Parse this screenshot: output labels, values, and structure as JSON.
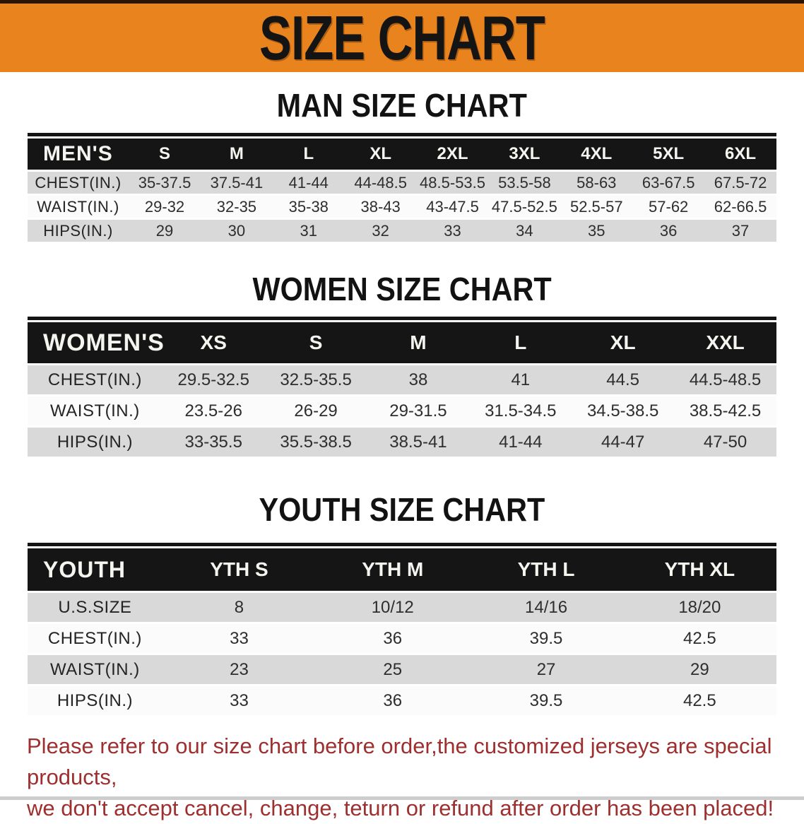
{
  "banner": {
    "title": "SIZE CHART"
  },
  "sections": [
    {
      "heading": "MAN SIZE CHART",
      "header_label": "MEN'S",
      "columns": [
        "S",
        "M",
        "L",
        "XL",
        "2XL",
        "3XL",
        "4XL",
        "5XL",
        "6XL"
      ],
      "rows": [
        {
          "label": "CHEST(IN.)",
          "values": [
            "35-37.5",
            "37.5-41",
            "41-44",
            "44-48.5",
            "48.5-53.5",
            "53.5-58",
            "58-63",
            "63-67.5",
            "67.5-72"
          ]
        },
        {
          "label": "WAIST(IN.)",
          "values": [
            "29-32",
            "32-35",
            "35-38",
            "38-43",
            "43-47.5",
            "47.5-52.5",
            "52.5-57",
            "57-62",
            "62-66.5"
          ]
        },
        {
          "label": "HIPS(IN.)",
          "values": [
            "29",
            "30",
            "31",
            "32",
            "33",
            "34",
            "35",
            "36",
            "37"
          ]
        }
      ]
    },
    {
      "heading": "WOMEN SIZE CHART",
      "header_label": "WOMEN'S",
      "columns": [
        "XS",
        "S",
        "M",
        "L",
        "XL",
        "XXL"
      ],
      "rows": [
        {
          "label": "CHEST(IN.)",
          "values": [
            "29.5-32.5",
            "32.5-35.5",
            "38",
            "41",
            "44.5",
            "44.5-48.5"
          ]
        },
        {
          "label": "WAIST(IN.)",
          "values": [
            "23.5-26",
            "26-29",
            "29-31.5",
            "31.5-34.5",
            "34.5-38.5",
            "38.5-42.5"
          ]
        },
        {
          "label": "HIPS(IN.)",
          "values": [
            "33-35.5",
            "35.5-38.5",
            "38.5-41",
            "41-44",
            "44-47",
            "47-50"
          ]
        }
      ]
    },
    {
      "heading": "YOUTH SIZE CHART",
      "header_label": "YOUTH",
      "columns": [
        "YTH S",
        "YTH M",
        "YTH L",
        "YTH XL"
      ],
      "rows": [
        {
          "label": "U.S.SIZE",
          "values": [
            "8",
            "10/12",
            "14/16",
            "18/20"
          ]
        },
        {
          "label": "CHEST(IN.)",
          "values": [
            "33",
            "36",
            "39.5",
            "42.5"
          ]
        },
        {
          "label": "WAIST(IN.)",
          "values": [
            "23",
            "25",
            "27",
            "29"
          ]
        },
        {
          "label": "HIPS(IN.)",
          "values": [
            "33",
            "36",
            "39.5",
            "42.5"
          ]
        }
      ]
    }
  ],
  "footer": {
    "line1": "Please refer to our size chart before order,the customized jerseys are special products,",
    "line2": "we don't accept cancel, change, teturn or refund after order has been placed!"
  },
  "colors": {
    "banner_bg": "#e8831e",
    "banner_top_strip": "#2a1505",
    "table_header_bg": "#151515",
    "table_header_text": "#f5f5f0",
    "row_stripe_gray": "#d9d9d9",
    "row_stripe_white": "#fbfbfb",
    "notice_red": "#9e2f2f"
  }
}
